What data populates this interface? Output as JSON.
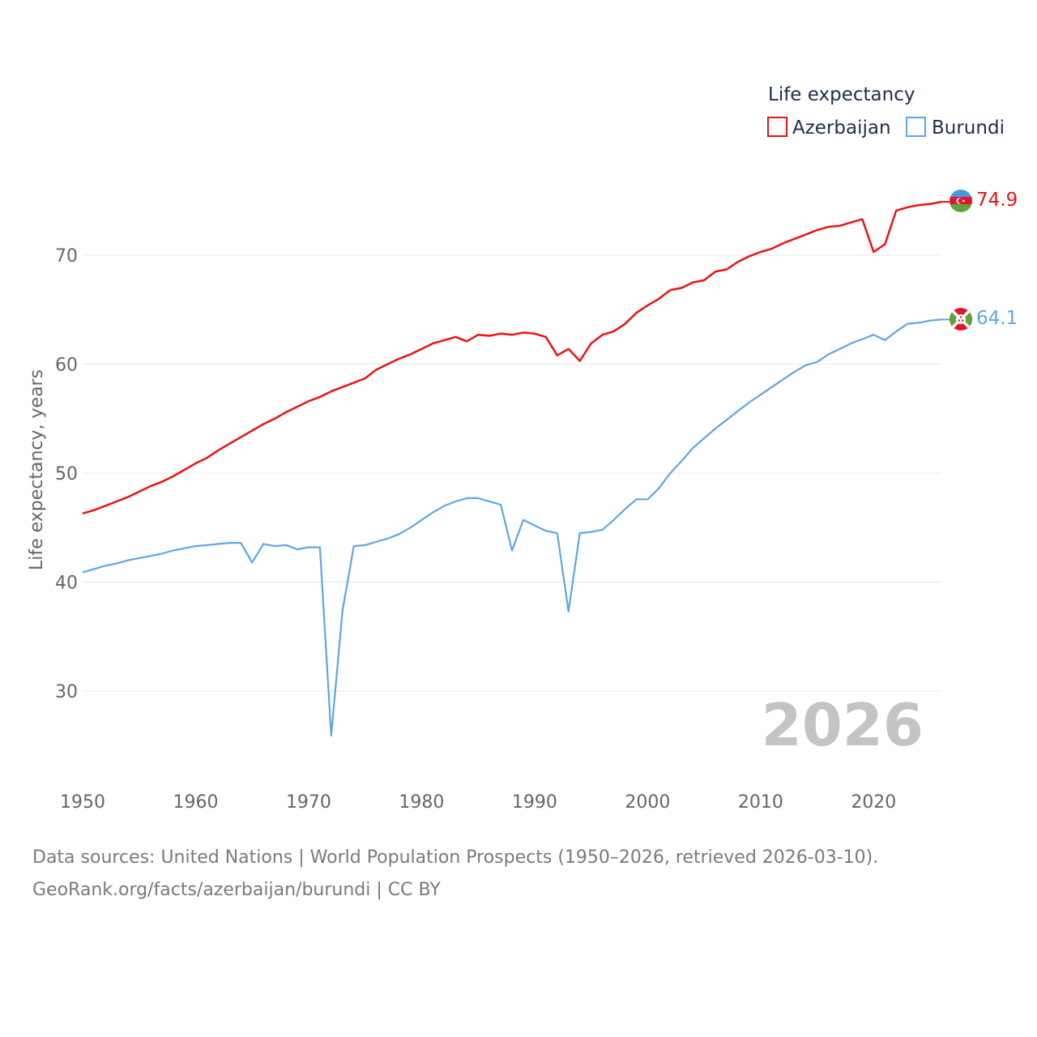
{
  "chart_data": {
    "type": "line",
    "legend_title": "Life expectancy",
    "ylabel": "Life expectancy, years",
    "xlabel": "",
    "year_watermark": "2026",
    "xlim": [
      1950,
      2026
    ],
    "ylim": [
      24,
      78
    ],
    "x_ticks": [
      "1950",
      "1960",
      "1970",
      "1980",
      "1990",
      "2000",
      "2010",
      "2020"
    ],
    "y_ticks": [
      "30",
      "40",
      "50",
      "60",
      "70"
    ],
    "years": [
      1950,
      1951,
      1952,
      1953,
      1954,
      1955,
      1956,
      1957,
      1958,
      1959,
      1960,
      1961,
      1962,
      1963,
      1964,
      1965,
      1966,
      1967,
      1968,
      1969,
      1970,
      1971,
      1972,
      1973,
      1974,
      1975,
      1976,
      1977,
      1978,
      1979,
      1980,
      1981,
      1982,
      1983,
      1984,
      1985,
      1986,
      1987,
      1988,
      1989,
      1990,
      1991,
      1992,
      1993,
      1994,
      1995,
      1996,
      1997,
      1998,
      1999,
      2000,
      2001,
      2002,
      2003,
      2004,
      2005,
      2006,
      2007,
      2008,
      2009,
      2010,
      2011,
      2012,
      2013,
      2014,
      2015,
      2016,
      2017,
      2018,
      2019,
      2020,
      2021,
      2022,
      2023,
      2024,
      2025,
      2026
    ],
    "series": [
      {
        "name": "Azerbaijan",
        "color": "#ee1111",
        "end_label": "74.9",
        "flag": "azerbaijan-flag",
        "values": [
          46.3,
          46.6,
          47.0,
          47.4,
          47.8,
          48.3,
          48.8,
          49.2,
          49.7,
          50.3,
          50.9,
          51.4,
          52.1,
          52.7,
          53.3,
          53.9,
          54.5,
          55.0,
          55.6,
          56.1,
          56.6,
          57.0,
          57.5,
          57.9,
          58.3,
          58.7,
          59.5,
          60.0,
          60.5,
          60.9,
          61.4,
          61.9,
          62.2,
          62.5,
          62.1,
          62.7,
          62.6,
          62.8,
          62.7,
          62.9,
          62.8,
          62.5,
          60.8,
          61.4,
          60.3,
          61.9,
          62.7,
          63.0,
          63.7,
          64.7,
          65.4,
          66.0,
          66.8,
          67.0,
          67.5,
          67.7,
          68.5,
          68.7,
          69.4,
          69.9,
          70.3,
          70.6,
          71.1,
          71.5,
          71.9,
          72.3,
          72.6,
          72.7,
          73.0,
          73.3,
          70.3,
          71.0,
          74.1,
          74.4,
          74.6,
          74.7,
          74.9
        ]
      },
      {
        "name": "Burundi",
        "color": "#5ea6e6",
        "end_label": "64.1",
        "flag": "burundi-flag",
        "values": [
          40.9,
          41.2,
          41.5,
          41.7,
          42.0,
          42.2,
          42.4,
          42.6,
          42.9,
          43.1,
          43.3,
          43.4,
          43.5,
          43.6,
          43.6,
          41.8,
          43.5,
          43.3,
          43.4,
          43.0,
          43.2,
          43.2,
          25.9,
          37.4,
          43.3,
          43.4,
          43.7,
          44.0,
          44.4,
          45.0,
          45.7,
          46.4,
          47.0,
          47.4,
          47.7,
          47.7,
          47.4,
          47.1,
          42.9,
          45.7,
          45.2,
          44.7,
          44.5,
          37.3,
          44.5,
          44.6,
          44.8,
          45.7,
          46.7,
          47.6,
          47.6,
          48.6,
          50.0,
          51.1,
          52.3,
          53.2,
          54.1,
          54.9,
          55.7,
          56.5,
          57.2,
          57.9,
          58.6,
          59.3,
          59.9,
          60.2,
          60.9,
          61.4,
          61.9,
          62.3,
          62.7,
          62.2,
          63.0,
          63.7,
          63.8,
          64.0,
          64.1
        ]
      }
    ]
  },
  "footer": {
    "line1": "Data sources: United Nations | World Population Prospects (1950–2026, retrieved 2026-03-10).",
    "line2": "GeoRank.org/facts/azerbaijan/burundi | CC BY"
  }
}
